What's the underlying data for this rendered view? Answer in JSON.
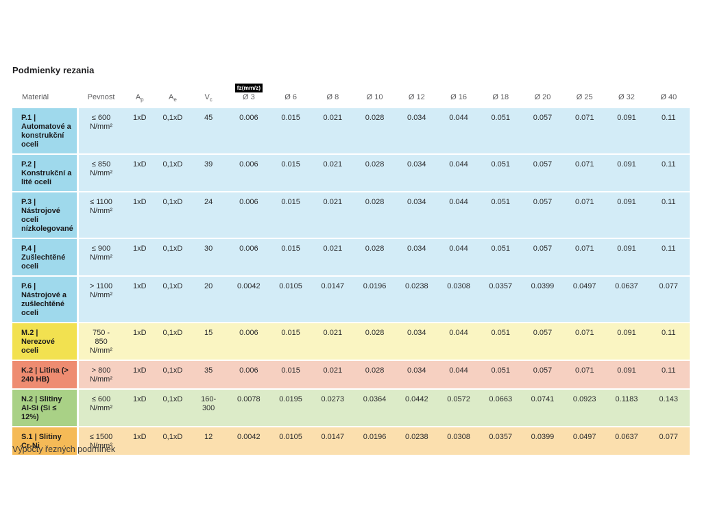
{
  "page": {
    "title": "Podmienky rezania",
    "footer": "Výpočty řezných podmínek"
  },
  "colors": {
    "badge_bg": "#000000",
    "badge_text": "#ffffff",
    "themes": {
      "blue": {
        "label": "#9fd9ec",
        "body": "#d3ecf7"
      },
      "yellow": {
        "label": "#f2e150",
        "body": "#faf5c2"
      },
      "red": {
        "label": "#ee8c71",
        "body": "#f6d0c1"
      },
      "green": {
        "label": "#a9d186",
        "body": "#dcebc8"
      },
      "orange": {
        "label": "#f5ba57",
        "body": "#fbdfae"
      }
    }
  },
  "table": {
    "badge": "fz(mm/z)",
    "headers": {
      "material": "Materiál",
      "pevnost": "Pevnost",
      "ap_main": "A",
      "ap_sub": "p",
      "ae_main": "A",
      "ae_sub": "e",
      "vc_main": "V",
      "vc_sub": "c",
      "diameters": [
        "Ø 3",
        "Ø 6",
        "Ø 8",
        "Ø 10",
        "Ø 12",
        "Ø 16",
        "Ø 18",
        "Ø 20",
        "Ø 25",
        "Ø 32",
        "Ø 40"
      ]
    },
    "rows": [
      {
        "theme": "blue",
        "material": "P.1 | Automatové a konstrukční oceli",
        "pevnost": "≤ 600\nN/mm²",
        "ap": "1xD",
        "ae": "0,1xD",
        "vc": "45",
        "fz": [
          "0.006",
          "0.015",
          "0.021",
          "0.028",
          "0.034",
          "0.044",
          "0.051",
          "0.057",
          "0.071",
          "0.091",
          "0.11"
        ]
      },
      {
        "theme": "blue",
        "material": "P.2 | Konstrukční a lité oceli",
        "pevnost": "≤ 850\nN/mm²",
        "ap": "1xD",
        "ae": "0,1xD",
        "vc": "39",
        "fz": [
          "0.006",
          "0.015",
          "0.021",
          "0.028",
          "0.034",
          "0.044",
          "0.051",
          "0.057",
          "0.071",
          "0.091",
          "0.11"
        ]
      },
      {
        "theme": "blue",
        "material": "P.3 | Nástrojové oceli nízkolegované",
        "pevnost": "≤ 1100\nN/mm²",
        "ap": "1xD",
        "ae": "0,1xD",
        "vc": "24",
        "fz": [
          "0.006",
          "0.015",
          "0.021",
          "0.028",
          "0.034",
          "0.044",
          "0.051",
          "0.057",
          "0.071",
          "0.091",
          "0.11"
        ]
      },
      {
        "theme": "blue",
        "material": "P.4 | Zušlechtěné oceli",
        "pevnost": "≤ 900\nN/mm²",
        "ap": "1xD",
        "ae": "0,1xD",
        "vc": "30",
        "fz": [
          "0.006",
          "0.015",
          "0.021",
          "0.028",
          "0.034",
          "0.044",
          "0.051",
          "0.057",
          "0.071",
          "0.091",
          "0.11"
        ]
      },
      {
        "theme": "blue",
        "material": "P.6 | Nástrojové a zušlechtěné oceli",
        "pevnost": "> 1100\nN/mm²",
        "ap": "1xD",
        "ae": "0,1xD",
        "vc": "20",
        "fz": [
          "0.0042",
          "0.0105",
          "0.0147",
          "0.0196",
          "0.0238",
          "0.0308",
          "0.0357",
          "0.0399",
          "0.0497",
          "0.0637",
          "0.077"
        ]
      },
      {
        "theme": "yellow",
        "material": "M.2 | Nerezové oceli",
        "pevnost": "750 -\n850\nN/mm²",
        "ap": "1xD",
        "ae": "0,1xD",
        "vc": "15",
        "fz": [
          "0.006",
          "0.015",
          "0.021",
          "0.028",
          "0.034",
          "0.044",
          "0.051",
          "0.057",
          "0.071",
          "0.091",
          "0.11"
        ]
      },
      {
        "theme": "red",
        "material": "K.2 | Litina (> 240 HB)",
        "pevnost": "> 800\nN/mm²",
        "ap": "1xD",
        "ae": "0,1xD",
        "vc": "35",
        "fz": [
          "0.006",
          "0.015",
          "0.021",
          "0.028",
          "0.034",
          "0.044",
          "0.051",
          "0.057",
          "0.071",
          "0.091",
          "0.11"
        ]
      },
      {
        "theme": "green",
        "material": "N.2 | Slitiny Al-Si (Si ≤ 12%)",
        "pevnost": "≤ 600\nN/mm²",
        "ap": "1xD",
        "ae": "0,1xD",
        "vc": "160-\n300",
        "fz": [
          "0.0078",
          "0.0195",
          "0.0273",
          "0.0364",
          "0.0442",
          "0.0572",
          "0.0663",
          "0.0741",
          "0.0923",
          "0.1183",
          "0.143"
        ]
      },
      {
        "theme": "orange",
        "material": "S.1 | Slitiny Cr-Ni",
        "pevnost": "≤ 1500\nN/mm²",
        "ap": "1xD",
        "ae": "0,1xD",
        "vc": "12",
        "fz": [
          "0.0042",
          "0.0105",
          "0.0147",
          "0.0196",
          "0.0238",
          "0.0308",
          "0.0357",
          "0.0399",
          "0.0497",
          "0.0637",
          "0.077"
        ]
      }
    ]
  }
}
